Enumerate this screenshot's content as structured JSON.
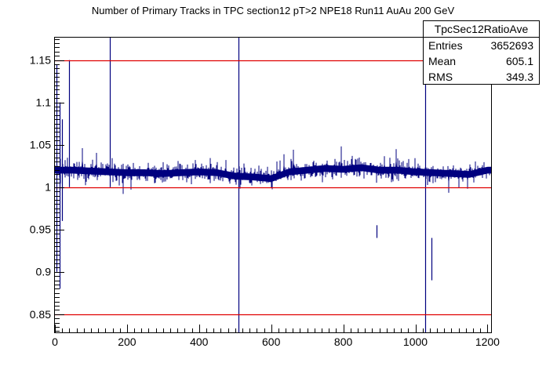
{
  "chart_data": {
    "type": "line",
    "title": "Number of Primary Tracks in TPC section12 pT>2 NPE18 Run11 AuAu 200 GeV",
    "xlabel": "",
    "ylabel": "",
    "xlim": [
      0,
      1210
    ],
    "ylim": [
      0.8285,
      1.1765
    ],
    "x_ticks": [
      0,
      200,
      400,
      600,
      800,
      1000,
      1200
    ],
    "y_ticks": [
      0.85,
      0.9,
      0.95,
      1,
      1.05,
      1.1,
      1.15
    ],
    "y_tick_labels": [
      "0.85",
      "0.9",
      "0.95",
      "1",
      "1.05",
      "1.1",
      "1.15"
    ],
    "grid": false,
    "reference_lines": [
      1.15,
      1.0,
      0.85
    ],
    "series": [
      {
        "x": [
          0,
          50,
          100,
          150,
          200,
          250,
          300,
          350,
          400,
          450,
          500,
          550,
          600,
          650,
          700,
          750,
          800,
          850,
          900,
          950,
          1000,
          1050,
          1100,
          1150,
          1200,
          1210
        ],
        "values": [
          1.02,
          1.02,
          1.019,
          1.018,
          1.017,
          1.017,
          1.016,
          1.017,
          1.018,
          1.017,
          1.013,
          1.012,
          1.01,
          1.018,
          1.02,
          1.022,
          1.021,
          1.023,
          1.02,
          1.02,
          1.018,
          1.017,
          1.016,
          1.015,
          1.02,
          1.02
        ],
        "spikes": [
          {
            "x": 5,
            "low": 0.9,
            "high": 1.145
          },
          {
            "x": 12,
            "low": 0.88,
            "high": 1.1
          },
          {
            "x": 20,
            "low": 0.96,
            "high": 1.08
          },
          {
            "x": 40,
            "low": 1.0,
            "high": 1.15
          },
          {
            "x": 152,
            "low": 1.0,
            "high": 1.178
          },
          {
            "x": 510,
            "low": 0.828,
            "high": 1.178
          },
          {
            "x": 893,
            "low": 0.94,
            "high": 0.955
          },
          {
            "x": 1027,
            "low": 0.828,
            "high": 1.178
          },
          {
            "x": 1045,
            "low": 0.89,
            "high": 0.94
          }
        ]
      }
    ]
  },
  "stats_box": {
    "name": "TpcSec12RatioAve",
    "rows": [
      {
        "label": "Entries",
        "value": "3652693"
      },
      {
        "label": "Mean",
        "value": "605.1"
      },
      {
        "label": "RMS",
        "value": "349.3"
      }
    ]
  },
  "colors": {
    "data_line": "#00007f",
    "reference_line": "#e00000",
    "axis": "#000000"
  }
}
